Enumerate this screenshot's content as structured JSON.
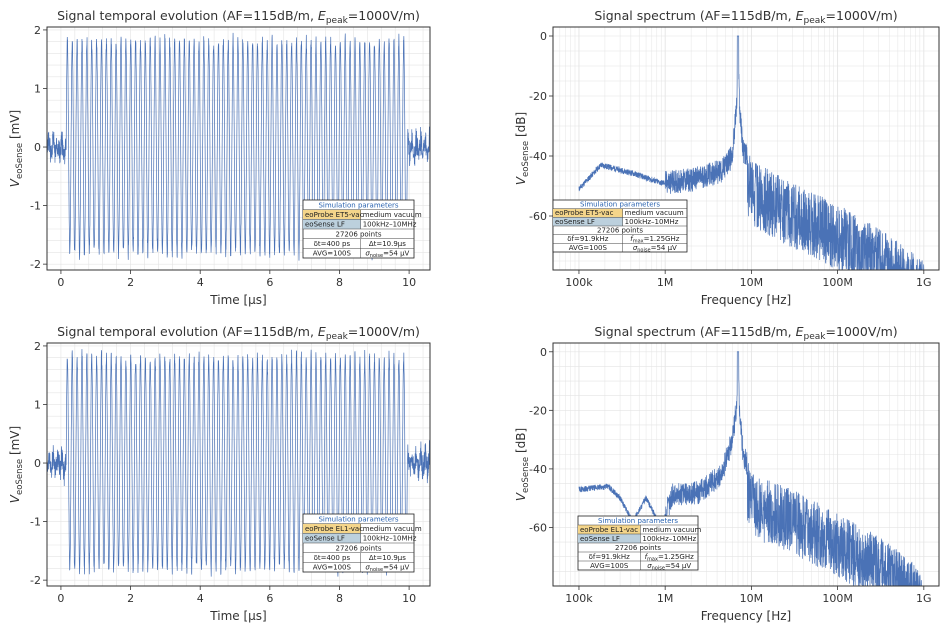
{
  "colors": {
    "signal": "#4a72b6",
    "grid": "#e4e4e4",
    "frame": "#333333",
    "probe_bg": "#f4d58a",
    "sense_bg": "#bcd0dd",
    "range_text": "#e36a6a",
    "legend_head": "#2a63b0"
  },
  "chart_data": [
    {
      "id": "top-left",
      "type": "line",
      "title_pre": "Signal temporal evolution (AF=115dB/m, ",
      "title_e": "E",
      "title_sub": "peak",
      "title_post": "=1000V/m)",
      "xlabel": "Time [µs]",
      "ylabel_pre": "V",
      "ylabel_sub": "eoSense",
      "ylabel_post": " [mV]",
      "xlim": [
        -0.4,
        10.6
      ],
      "ylim": [
        -2.1,
        2.05
      ],
      "xticks": [
        0,
        2,
        4,
        6,
        8,
        10
      ],
      "xtick_labels": [
        "0",
        "2",
        "4",
        "6",
        "8",
        "10"
      ],
      "yticks": [
        2,
        1,
        0,
        -1,
        -2
      ],
      "ytick_labels": [
        "2",
        "1",
        "0",
        "-1",
        "-2"
      ],
      "series": [
        {
          "name": "V_eoSense",
          "cycles": 70,
          "amplitude": 1.9,
          "burst_start": 0.15,
          "burst_end": 9.95,
          "seed": 3
        }
      ],
      "legend": {
        "title": "Simulation parameters",
        "row1": [
          "eoProbe ET5-vac",
          "medium vacuum"
        ],
        "row2": [
          "eoSense LF",
          "100kHz–10MHz"
        ],
        "points": "27206 points",
        "row4": [
          "δt=400 ps",
          "Δt=10.9µs"
        ],
        "row5": [
          "AVG=100S",
          "σ",
          "noise",
          "=54 µV"
        ]
      }
    },
    {
      "id": "top-right",
      "type": "line",
      "title_pre": "Signal spectrum (AF=115dB/m, ",
      "title_e": "E",
      "title_sub": "peak",
      "title_post": "=1000V/m)",
      "xlabel": "Frequency [Hz]",
      "ylabel_pre": "V",
      "ylabel_sub": "eoSense",
      "ylabel_post": " [dB]",
      "xscale": "log",
      "xlim": [
        50000,
        1500000000
      ],
      "ylim": [
        -78,
        3
      ],
      "xticks": [
        100000,
        1000000,
        10000000,
        100000000,
        1000000000
      ],
      "xtick_labels": [
        "100k",
        "1M",
        "10M",
        "100M",
        "1G"
      ],
      "yticks": [
        0,
        -20,
        -40,
        -60
      ],
      "ytick_labels": [
        "0",
        "-20",
        "-40",
        "-60"
      ],
      "series": [
        {
          "name": "spectrum",
          "peak_freq": 7000000,
          "peak_db": 0,
          "anchors": [
            [
              100000,
              -51
            ],
            [
              180000,
              -43
            ],
            [
              450000,
              -46
            ],
            [
              900000,
              -49
            ],
            [
              2000000,
              -48
            ],
            [
              4500000,
              -45
            ],
            [
              6000000,
              -40
            ],
            [
              6800000,
              -22
            ],
            [
              7000000,
              0
            ],
            [
              7300000,
              -24
            ],
            [
              8000000,
              -38
            ],
            [
              11000000,
              -45
            ],
            [
              30000000,
              -52
            ],
            [
              100000000,
              -59
            ],
            [
              300000000,
              -67
            ],
            [
              700000000,
              -74
            ],
            [
              1000000000,
              -78
            ]
          ],
          "seed": 11
        }
      ],
      "legend": {
        "title": "Simulation parameters",
        "row1": [
          "eoProbe ET5-vac",
          "medium vacuum"
        ],
        "row2": [
          "eoSense LF",
          "100kHz–10MHz"
        ],
        "points": "27206 points",
        "row4": [
          "δf=91.9kHz",
          "f",
          "max",
          "=1.25GHz"
        ],
        "row5": [
          "AVG=100S",
          "σ",
          "noise",
          "=54 µV"
        ]
      }
    },
    {
      "id": "bottom-left",
      "type": "line",
      "title_pre": "Signal temporal evolution (AF=115dB/m, ",
      "title_e": "E",
      "title_sub": "peak",
      "title_post": "=1000V/m)",
      "xlabel": "Time [µs]",
      "ylabel_pre": "V",
      "ylabel_sub": "eoSense",
      "ylabel_post": " [mV]",
      "xlim": [
        -0.4,
        10.6
      ],
      "ylim": [
        -2.1,
        2.05
      ],
      "xticks": [
        0,
        2,
        4,
        6,
        8,
        10
      ],
      "xtick_labels": [
        "0",
        "2",
        "4",
        "6",
        "8",
        "10"
      ],
      "yticks": [
        2,
        1,
        0,
        -1,
        -2
      ],
      "ytick_labels": [
        "2",
        "1",
        "0",
        "-1",
        "-2"
      ],
      "series": [
        {
          "name": "V_eoSense",
          "cycles": 70,
          "amplitude": 1.9,
          "burst_start": 0.15,
          "burst_end": 9.95,
          "seed": 17
        }
      ],
      "legend": {
        "title": "Simulation parameters",
        "row1": [
          "eoProbe EL1-vac",
          "medium vacuum"
        ],
        "row2": [
          "eoSense LF",
          "100kHz–10MHz"
        ],
        "points": "27206 points",
        "row4": [
          "δt=400 ps",
          "Δt=10.9µs"
        ],
        "row5": [
          "AVG=100S",
          "σ",
          "noise",
          "=54 µV"
        ]
      }
    },
    {
      "id": "bottom-right",
      "type": "line",
      "title_pre": "Signal spectrum (AF=115dB/m, ",
      "title_e": "E",
      "title_sub": "peak",
      "title_post": "=1000V/m)",
      "xlabel": "Frequency [Hz]",
      "ylabel_pre": "V",
      "ylabel_sub": "eoSense",
      "ylabel_post": " [dB]",
      "xscale": "log",
      "xlim": [
        50000,
        1500000000
      ],
      "ylim": [
        -80,
        3
      ],
      "xticks": [
        100000,
        1000000,
        10000000,
        100000000,
        1000000000
      ],
      "xtick_labels": [
        "100k",
        "1M",
        "10M",
        "100M",
        "1G"
      ],
      "yticks": [
        0,
        -20,
        -40,
        -60
      ],
      "ytick_labels": [
        "0",
        "-20",
        "-40",
        "-60"
      ],
      "series": [
        {
          "name": "spectrum",
          "peak_freq": 7000000,
          "peak_db": 0,
          "anchors": [
            [
              100000,
              -47
            ],
            [
              220000,
              -46
            ],
            [
              300000,
              -50
            ],
            [
              420000,
              -58
            ],
            [
              600000,
              -50
            ],
            [
              900000,
              -60
            ],
            [
              1200000,
              -49
            ],
            [
              2500000,
              -48
            ],
            [
              4500000,
              -42
            ],
            [
              6000000,
              -30
            ],
            [
              6800000,
              -18
            ],
            [
              7000000,
              0
            ],
            [
              7300000,
              -20
            ],
            [
              8000000,
              -35
            ],
            [
              11000000,
              -45
            ],
            [
              30000000,
              -50
            ],
            [
              100000000,
              -58
            ],
            [
              300000000,
              -66
            ],
            [
              700000000,
              -74
            ],
            [
              1000000000,
              -80
            ]
          ],
          "seed": 29
        }
      ],
      "legend": {
        "title": "Simulation parameters",
        "row1": [
          "eoProbe EL1-vac",
          "medium vacuum"
        ],
        "row2": [
          "eoSense LF",
          "100kHz–10MHz"
        ],
        "points": "27206 points",
        "row4": [
          "δf=91.9kHz",
          "f",
          "max",
          "=1.25GHz"
        ],
        "row5": [
          "AVG=100S",
          "σ",
          "noise",
          "=54 µV"
        ]
      }
    }
  ]
}
